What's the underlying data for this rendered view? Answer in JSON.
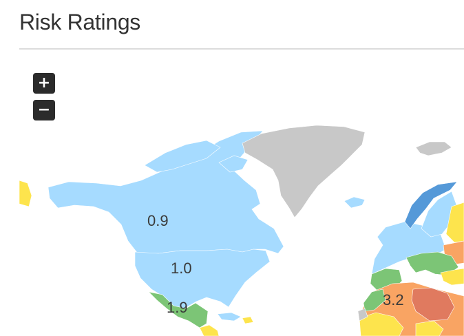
{
  "header": {
    "title": "Risk Ratings"
  },
  "controls": {
    "zoom_in": "+",
    "zoom_out": "−"
  },
  "colors": {
    "very_low": "#5599d8",
    "low": "#a6dbff",
    "moderate": "#7cc576",
    "elevated": "#fde44d",
    "high": "#f9a463",
    "very_high": "#e07a5f",
    "no_data": "#c8c8c8"
  },
  "labels": {
    "north_canada": "0.9",
    "united_states": "1.0",
    "mexico": "1.9",
    "north_africa": "3.2"
  }
}
